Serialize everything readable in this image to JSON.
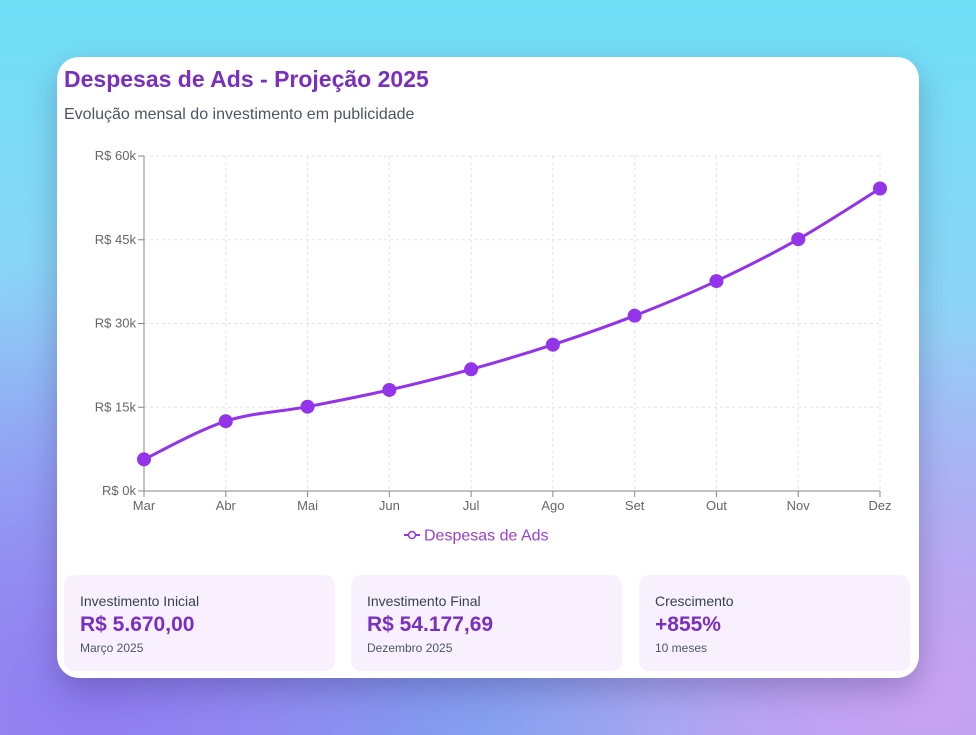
{
  "header": {
    "title": "Despesas de Ads - Projeção 2025",
    "subtitle": "Evolução mensal do investimento em publicidade"
  },
  "chart_data": {
    "type": "line",
    "title": "Despesas de Ads - Projeção 2025",
    "subtitle": "Evolução mensal do investimento em publicidade",
    "categories": [
      "Mar",
      "Abr",
      "Mai",
      "Jun",
      "Jul",
      "Ago",
      "Set",
      "Out",
      "Nov",
      "Dez"
    ],
    "series": [
      {
        "name": "Despesas de Ads",
        "color": "#9333ea",
        "values": [
          5670,
          12500,
          15100,
          18100,
          21800,
          26200,
          31400,
          37600,
          45100,
          54177.69
        ]
      }
    ],
    "y_ticks": [
      0,
      15000,
      30000,
      45000,
      60000
    ],
    "y_tick_labels": [
      "R$ 0k",
      "R$ 15k",
      "R$ 30k",
      "R$ 45k",
      "R$ 60k"
    ],
    "ylim": [
      0,
      60000
    ],
    "grid": true,
    "legend": "bottom-center"
  },
  "stats": [
    {
      "label": "Investimento Inicial",
      "value": "R$ 5.670,00",
      "sub": "Março 2025"
    },
    {
      "label": "Investimento Final",
      "value": "R$ 54.177,69",
      "sub": "Dezembro 2025"
    },
    {
      "label": "Crescimento",
      "value": "+855%",
      "sub": "10 meses"
    }
  ],
  "colors": {
    "accent": "#7b2fc0",
    "line": "#9333ea",
    "card_tint": "#f8f1fd"
  }
}
